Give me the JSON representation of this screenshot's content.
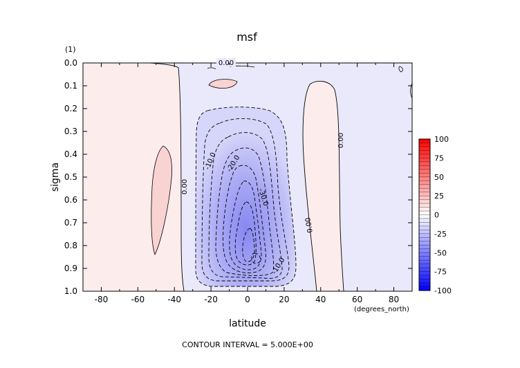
{
  "chart_data": {
    "type": "contour",
    "title": "msf",
    "xlabel": "latitude",
    "x_units": "(degrees_north)",
    "ylabel": "sigma",
    "y_units": "(1)",
    "xlim": [
      -90,
      90
    ],
    "ylim": [
      1.0,
      0.0
    ],
    "y_inverted": true,
    "x_ticks": [
      -80,
      -60,
      -40,
      -20,
      0,
      20,
      40,
      60,
      80
    ],
    "y_ticks": [
      "0.0",
      "0.1",
      "0.2",
      "0.3",
      "0.4",
      "0.5",
      "0.6",
      "0.7",
      "0.8",
      "0.9",
      "1.0"
    ],
    "contour_labels": [
      {
        "text": "0.00",
        "lat": -27,
        "sigma": 0.56
      },
      {
        "text": "0.00",
        "lat": -10,
        "sigma": 0.0
      },
      {
        "text": "0.00",
        "lat": 42,
        "sigma": 0.35
      },
      {
        "text": "0.00",
        "lat": 30,
        "sigma": 0.75
      },
      {
        "text": "-10.0",
        "lat": -17,
        "sigma": 0.44
      },
      {
        "text": "-20.0",
        "lat": -6,
        "sigma": 0.45
      },
      {
        "text": "-30.0",
        "lat": 6,
        "sigma": 0.62
      },
      {
        "text": "-10.0",
        "lat": 15,
        "sigma": 0.91
      }
    ],
    "colorbar": {
      "ticks": [
        "100",
        "75",
        "50",
        "25",
        "0",
        "-25",
        "-50",
        "-75",
        "-100"
      ],
      "min": -100,
      "max": 100,
      "colors": {
        "positive": "#ff0000",
        "zero": "#ffffff",
        "negative": "#0000ff"
      }
    },
    "footer": "CONTOUR INTERVAL = 5.000E+00"
  }
}
